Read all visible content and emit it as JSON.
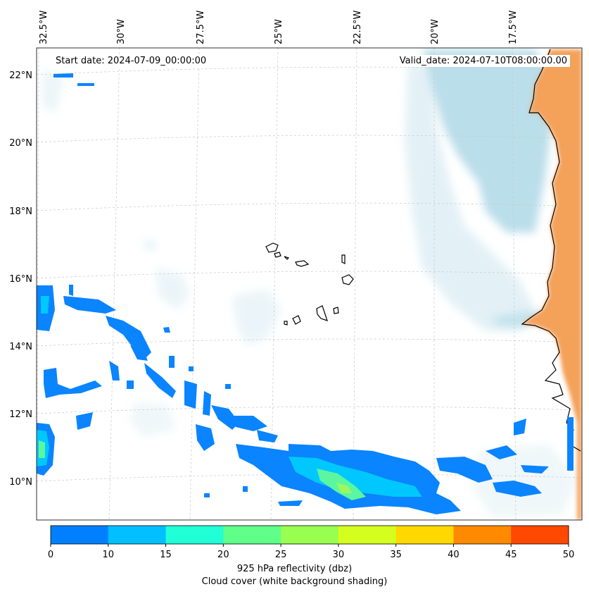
{
  "map": {
    "lon_labels": [
      "32.5°W",
      "30°W",
      "27.5°W",
      "25°W",
      "22.5°W",
      "20°W",
      "17.5°W"
    ],
    "lat_labels": [
      "22°N",
      "20°N",
      "18°N",
      "16°N",
      "14°N",
      "12°N",
      "10°N"
    ],
    "start_date": "Start date: 2024-07-09_00:00:00",
    "valid_date": "Valid_date: 2024-07-10T08:00:00.00"
  },
  "colorbar": {
    "ticks": [
      "0",
      "10",
      "15",
      "20",
      "25",
      "30",
      "35",
      "40",
      "45",
      "50"
    ],
    "colors": [
      "#0080ff",
      "#00c0ff",
      "#20ffd6",
      "#60ff8a",
      "#98ff50",
      "#d4ff1e",
      "#ffd800",
      "#ff8a00",
      "#ff4800"
    ],
    "label": "925 hPa reflectivity (dbz)",
    "sublabel": "Cloud cover (white background shading)"
  },
  "colors": {
    "land": "#f4a15a",
    "cloud": "#aed8e6",
    "echo_low": "#0a84ff",
    "echo_mid": "#00c8ff",
    "echo_high": "#5cf6a0"
  }
}
